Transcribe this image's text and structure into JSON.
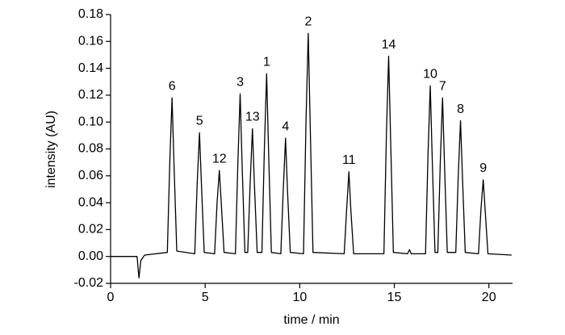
{
  "chart_data": {
    "type": "line",
    "x_label": "time / min",
    "y_label": "intensity (AU)",
    "xlim": [
      0,
      21.25
    ],
    "ylim": [
      -0.02,
      0.18
    ],
    "xticks": [
      0,
      5,
      10,
      15,
      20
    ],
    "yticks": [
      -0.02,
      {
        "value": 0,
        "label": "0.00"
      },
      0.02,
      0.04,
      0.06,
      0.08,
      {
        "value": 0.1,
        "label": "0.10"
      },
      0.12,
      0.14,
      0.16,
      0.18
    ],
    "x": [
      0,
      1.4,
      1.5,
      1.6,
      1.8,
      3.0,
      3.13,
      3.25,
      3.35,
      3.5,
      4.45,
      4.58,
      4.7,
      4.8,
      4.95,
      5.5,
      5.63,
      5.75,
      5.85,
      6.0,
      6.6,
      6.73,
      6.85,
      6.95,
      7.1,
      7.25,
      7.38,
      7.5,
      7.6,
      7.75,
      8.0,
      8.13,
      8.25,
      8.35,
      8.5,
      9.0,
      9.13,
      9.25,
      9.35,
      9.5,
      10.2,
      10.33,
      10.45,
      10.55,
      10.7,
      12.35,
      12.48,
      12.6,
      12.7,
      12.85,
      14.45,
      14.58,
      14.7,
      14.8,
      14.95,
      15.7,
      15.8,
      15.9,
      16.65,
      16.78,
      16.9,
      17.0,
      17.15,
      17.3,
      17.43,
      17.55,
      17.65,
      17.8,
      18.25,
      18.38,
      18.5,
      18.6,
      18.75,
      19.45,
      19.58,
      19.7,
      19.8,
      19.95,
      21.2
    ],
    "series": [
      {
        "color": "#000000",
        "values": [
          0,
          0,
          -0.016,
          -0.003,
          0.001,
          0.003,
          0.07,
          0.118,
          0.07,
          0.004,
          0.002,
          0.055,
          0.092,
          0.055,
          0.003,
          0.002,
          0.04,
          0.064,
          0.04,
          0.003,
          0.002,
          0.07,
          0.121,
          0.07,
          0.003,
          0.003,
          0.055,
          0.095,
          0.055,
          0.003,
          0.003,
          0.08,
          0.136,
          0.08,
          0.003,
          0.002,
          0.05,
          0.088,
          0.05,
          0.003,
          0.002,
          0.1,
          0.166,
          0.1,
          0.003,
          0.002,
          0.035,
          0.063,
          0.035,
          0.002,
          0.002,
          0.09,
          0.149,
          0.09,
          0.003,
          0.002,
          0.005,
          0.002,
          0.002,
          0.075,
          0.127,
          0.075,
          0.003,
          0.003,
          0.07,
          0.118,
          0.07,
          0.003,
          0.003,
          0.06,
          0.101,
          0.06,
          0.003,
          0.002,
          0.035,
          0.057,
          0.035,
          0.002,
          0.001
        ]
      }
    ],
    "annotations": [
      {
        "text": "6",
        "x": 3.25,
        "y": 0.118
      },
      {
        "text": "5",
        "x": 4.7,
        "y": 0.092
      },
      {
        "text": "12",
        "x": 5.75,
        "y": 0.064
      },
      {
        "text": "3",
        "x": 6.85,
        "y": 0.121
      },
      {
        "text": "13",
        "x": 7.5,
        "y": 0.095
      },
      {
        "text": "1",
        "x": 8.25,
        "y": 0.136
      },
      {
        "text": "4",
        "x": 9.25,
        "y": 0.088
      },
      {
        "text": "2",
        "x": 10.45,
        "y": 0.166
      },
      {
        "text": "11",
        "x": 12.6,
        "y": 0.063
      },
      {
        "text": "14",
        "x": 14.7,
        "y": 0.149
      },
      {
        "text": "10",
        "x": 16.9,
        "y": 0.127
      },
      {
        "text": "7",
        "x": 17.55,
        "y": 0.118
      },
      {
        "text": "8",
        "x": 18.5,
        "y": 0.101
      },
      {
        "text": "9",
        "x": 19.7,
        "y": 0.057
      }
    ]
  }
}
